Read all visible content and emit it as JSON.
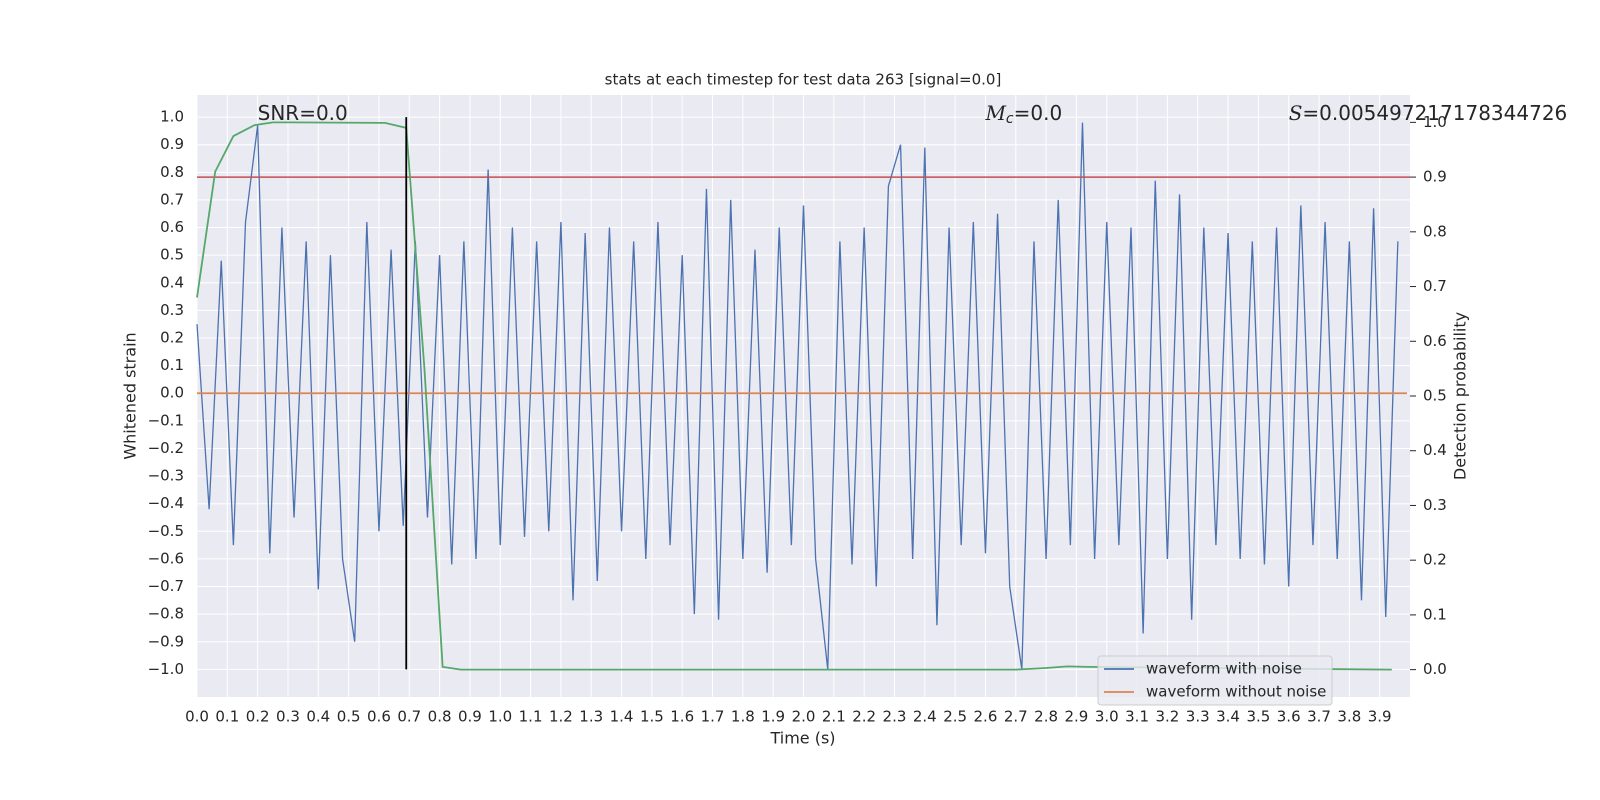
{
  "chart_data": {
    "type": "line",
    "title": "stats at each timestep for test data 263 [signal=0.0]",
    "x_label": "Time (s)",
    "y_label": "Whitened strain",
    "y2_label": "Detection probability",
    "xlim": [
      0,
      4.0
    ],
    "ylim": [
      -1.1,
      1.08
    ],
    "y2lim": [
      -0.05,
      1.05
    ],
    "grid": true,
    "legend": "lower right",
    "xticks": [
      {
        "value": 0,
        "label": "0.0"
      },
      0.1,
      0.2,
      0.3,
      0.4,
      0.5,
      0.6,
      0.7,
      0.8,
      0.9,
      {
        "value": 1,
        "label": "1.0"
      },
      1.1,
      1.2,
      1.3,
      1.4,
      1.5,
      1.6,
      1.7,
      1.8,
      1.9,
      {
        "value": 2,
        "label": "2.0"
      },
      2.1,
      2.2,
      2.3,
      2.4,
      2.5,
      2.6,
      2.7,
      2.8,
      2.9,
      {
        "value": 3,
        "label": "3.0"
      },
      3.1,
      3.2,
      3.3,
      3.4,
      3.5,
      3.6,
      3.7,
      3.8,
      3.9
    ],
    "yticks": [
      {
        "value": -1,
        "label": "−1.0"
      },
      {
        "value": -0.9,
        "label": "−0.9"
      },
      {
        "value": -0.8,
        "label": "−0.8"
      },
      {
        "value": -0.7,
        "label": "−0.7"
      },
      {
        "value": -0.6,
        "label": "−0.6"
      },
      {
        "value": -0.5,
        "label": "−0.5"
      },
      {
        "value": -0.4,
        "label": "−0.4"
      },
      {
        "value": -0.3,
        "label": "−0.3"
      },
      {
        "value": -0.2,
        "label": "−0.2"
      },
      {
        "value": -0.1,
        "label": "−0.1"
      },
      {
        "value": 0,
        "label": "0.0"
      },
      0.1,
      0.2,
      0.3,
      0.4,
      0.5,
      0.6,
      0.7,
      0.8,
      0.9,
      {
        "value": 1,
        "label": "1.0"
      }
    ],
    "y2ticks": [
      {
        "value": 0,
        "label": "0.0"
      },
      0.1,
      0.2,
      0.3,
      0.4,
      0.5,
      0.6,
      0.7,
      0.8,
      0.9,
      {
        "value": 1,
        "label": "1.0"
      }
    ],
    "series": [
      {
        "name": "waveform with noise",
        "color": "#4c72b0",
        "x": [
          0,
          0.04,
          0.08,
          0.12,
          0.16,
          0.2,
          0.24,
          0.28,
          0.32,
          0.36,
          0.4,
          0.44,
          0.48,
          0.52,
          0.56,
          0.6,
          0.64,
          0.68,
          0.72,
          0.76,
          0.8,
          0.84,
          0.88,
          0.92,
          0.96,
          1.0,
          1.04,
          1.08,
          1.12,
          1.16,
          1.2,
          1.24,
          1.28,
          1.32,
          1.36,
          1.4,
          1.44,
          1.48,
          1.52,
          1.56,
          1.6,
          1.64,
          1.68,
          1.72,
          1.76,
          1.8,
          1.84,
          1.88,
          1.92,
          1.96,
          2.0,
          2.04,
          2.08,
          2.12,
          2.16,
          2.2,
          2.24,
          2.28,
          2.32,
          2.36,
          2.4,
          2.44,
          2.48,
          2.52,
          2.56,
          2.6,
          2.64,
          2.68,
          2.72,
          2.76,
          2.8,
          2.84,
          2.88,
          2.92,
          2.96,
          3.0,
          3.04,
          3.08,
          3.12,
          3.16,
          3.2,
          3.24,
          3.28,
          3.32,
          3.36,
          3.4,
          3.44,
          3.48,
          3.52,
          3.56,
          3.6,
          3.64,
          3.68,
          3.72,
          3.76,
          3.8,
          3.84,
          3.88,
          3.92,
          3.96
        ],
        "values": [
          0.25,
          -0.42,
          0.48,
          -0.55,
          0.62,
          0.97,
          -0.58,
          0.6,
          -0.45,
          0.55,
          -0.71,
          0.5,
          -0.6,
          -0.9,
          0.62,
          -0.5,
          0.52,
          -0.48,
          0.55,
          -0.45,
          0.5,
          -0.62,
          0.55,
          -0.6,
          0.81,
          -0.55,
          0.6,
          -0.52,
          0.55,
          -0.5,
          0.62,
          -0.75,
          0.58,
          -0.68,
          0.6,
          -0.5,
          0.55,
          -0.6,
          0.62,
          -0.55,
          0.5,
          -0.8,
          0.74,
          -0.82,
          0.7,
          -0.6,
          0.52,
          -0.65,
          0.6,
          -0.55,
          0.68,
          -0.6,
          -1.0,
          0.55,
          -0.62,
          0.6,
          -0.7,
          0.75,
          0.9,
          -0.6,
          0.89,
          -0.84,
          0.6,
          -0.55,
          0.62,
          -0.58,
          0.65,
          -0.7,
          -1.0,
          0.55,
          -0.6,
          0.7,
          -0.55,
          0.98,
          -0.6,
          0.62,
          -0.55,
          0.6,
          -0.87,
          0.77,
          -0.6,
          0.72,
          -0.82,
          0.6,
          -0.55,
          0.58,
          -0.6,
          0.55,
          -0.62,
          0.6,
          -0.7,
          0.68,
          -0.55,
          0.62,
          -0.6,
          0.55,
          -0.75,
          0.67,
          -0.81,
          0.55
        ]
      },
      {
        "name": "waveform without noise",
        "color": "#dd8452",
        "x": [
          0,
          3.99
        ],
        "values": [
          0,
          0
        ]
      }
    ],
    "detection_probability": {
      "color": "#55a868",
      "axis": "y2",
      "x": [
        0,
        0.06,
        0.12,
        0.19,
        0.25,
        0.31,
        0.62,
        0.69,
        0.75,
        0.81,
        0.87,
        2.7,
        2.8,
        2.87,
        2.94,
        3.94
      ],
      "values": [
        0.68,
        0.91,
        0.975,
        0.995,
        1.0,
        1.0,
        0.999,
        0.99,
        0.55,
        0.005,
        0.0,
        0.0,
        0.003,
        0.006,
        0.005,
        0.0
      ]
    },
    "threshold": {
      "value": 0.9,
      "axis": "y2",
      "color": "#c44e52"
    },
    "vline": {
      "x": 0.69,
      "ymin": -1,
      "ymax": 1,
      "color": "#000000"
    },
    "annotations": [
      {
        "text": "SNR=0.0"
      },
      {
        "symbol": "M",
        "subscript": "c",
        "text": "=0.0"
      },
      {
        "symbol": "S",
        "text": "=0.005497217178344726"
      }
    ]
  }
}
